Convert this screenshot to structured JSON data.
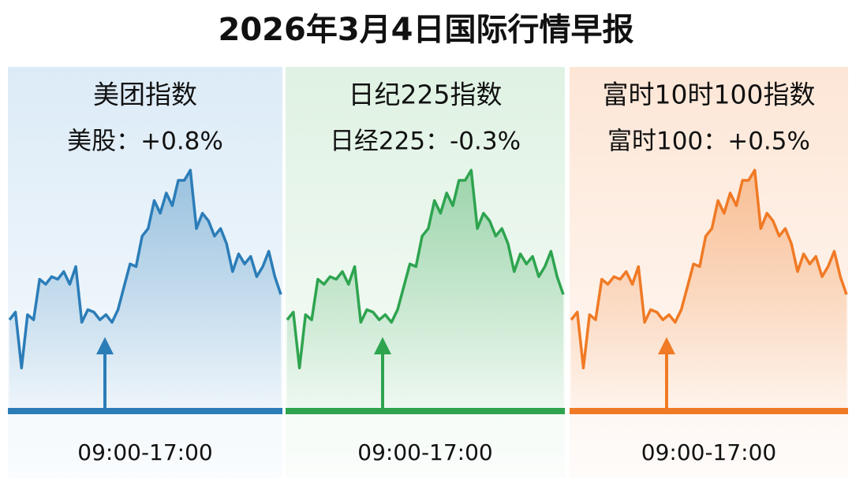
{
  "title": "2026年3月4日国际行情早报",
  "chart_data": [
    {
      "type": "line",
      "title": "美团指数",
      "subtitle": "美股：+0.8%",
      "xlabel": "09:00-17:00",
      "color": "#2b7db8",
      "background": "#dcebf7",
      "ylim": [
        0,
        100
      ],
      "values": [
        36,
        39,
        17,
        38,
        36,
        52,
        50,
        53,
        52,
        55,
        50,
        57,
        35,
        40,
        39,
        36,
        38,
        35,
        40,
        49,
        58,
        57,
        69,
        72,
        83,
        78,
        86,
        81,
        91,
        91,
        95,
        72,
        78,
        75,
        69,
        72,
        66,
        55,
        62,
        58,
        61,
        53,
        57,
        63,
        53,
        46
      ]
    },
    {
      "type": "line",
      "title": "日纪225指数",
      "subtitle": "日经225：-0.3%",
      "xlabel": "09:00-17:00",
      "color": "#2ea44f",
      "background": "#dff2e3",
      "ylim": [
        0,
        100
      ],
      "values": [
        36,
        39,
        17,
        38,
        36,
        52,
        50,
        53,
        52,
        55,
        50,
        57,
        35,
        40,
        39,
        36,
        38,
        35,
        40,
        49,
        58,
        57,
        69,
        72,
        83,
        78,
        86,
        81,
        91,
        91,
        95,
        72,
        78,
        75,
        69,
        72,
        66,
        55,
        62,
        58,
        61,
        53,
        57,
        63,
        53,
        46
      ]
    },
    {
      "type": "line",
      "title": "富时10时100指数",
      "subtitle": "富时100：+0.5%",
      "xlabel": "09:00-17:00",
      "color": "#f07a25",
      "background": "#fde6d6",
      "ylim": [
        0,
        100
      ],
      "values": [
        36,
        39,
        17,
        38,
        36,
        52,
        50,
        53,
        52,
        55,
        50,
        57,
        35,
        40,
        39,
        36,
        38,
        35,
        40,
        49,
        58,
        57,
        69,
        72,
        83,
        78,
        86,
        81,
        91,
        91,
        95,
        72,
        78,
        75,
        69,
        72,
        66,
        55,
        62,
        58,
        61,
        53,
        57,
        63,
        53,
        46
      ]
    }
  ]
}
